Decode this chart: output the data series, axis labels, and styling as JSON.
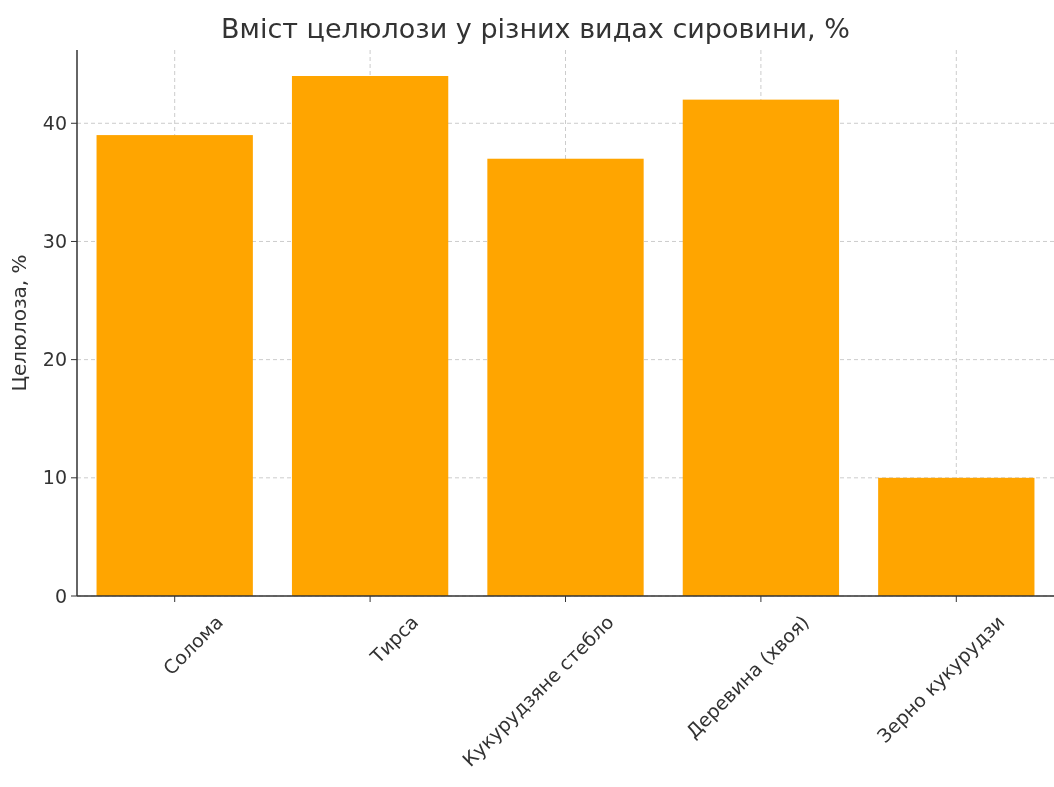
{
  "chart_data": {
    "type": "bar",
    "title": "Вміст целюлози у різних видах сировини, %",
    "ylabel": "Целюлоза, %",
    "categories": [
      "Солома",
      "Тирса",
      "Кукурудзяне стебло",
      "Деревина (хвоя)",
      "Зерно кукурудзи"
    ],
    "values": [
      39,
      44,
      37,
      42,
      10
    ],
    "color": "#ffa500",
    "ylim": [
      0,
      46.2
    ],
    "yticks": [
      0,
      10,
      20,
      30,
      40
    ],
    "grid": true
  }
}
